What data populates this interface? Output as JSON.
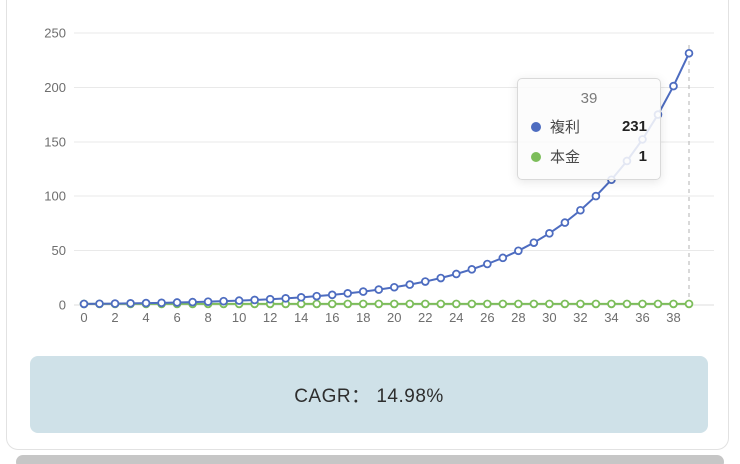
{
  "chart_data": {
    "type": "line",
    "x": [
      0,
      1,
      2,
      3,
      4,
      5,
      6,
      7,
      8,
      9,
      10,
      11,
      12,
      13,
      14,
      15,
      16,
      17,
      18,
      19,
      20,
      21,
      22,
      23,
      24,
      25,
      26,
      27,
      28,
      29,
      30,
      31,
      32,
      33,
      34,
      35,
      36,
      37,
      38,
      39
    ],
    "series": [
      {
        "name": "複利",
        "color": "#4d6cc0",
        "values": [
          1,
          1.15,
          1.32,
          1.52,
          1.75,
          2.01,
          2.31,
          2.66,
          3.05,
          3.51,
          4.04,
          4.64,
          5.34,
          6.14,
          7.06,
          8.12,
          9.33,
          10.73,
          12.34,
          14.18,
          16.31,
          18.75,
          21.56,
          24.79,
          28.51,
          32.78,
          37.69,
          43.33,
          49.82,
          57.29,
          65.87,
          75.73,
          87.08,
          100.12,
          115.12,
          132.37,
          152.21,
          175.01,
          201.22,
          231.37
        ]
      },
      {
        "name": "本金",
        "color": "#7cbd5a",
        "values": [
          1,
          1,
          1,
          1,
          1,
          1,
          1,
          1,
          1,
          1,
          1,
          1,
          1,
          1,
          1,
          1,
          1,
          1,
          1,
          1,
          1,
          1,
          1,
          1,
          1,
          1,
          1,
          1,
          1,
          1,
          1,
          1,
          1,
          1,
          1,
          1,
          1,
          1,
          1,
          1
        ]
      }
    ],
    "xticks": [
      0,
      2,
      4,
      6,
      8,
      10,
      12,
      14,
      16,
      18,
      20,
      22,
      24,
      26,
      28,
      30,
      32,
      34,
      36,
      38
    ],
    "yticks": [
      0,
      50,
      100,
      150,
      200,
      250
    ],
    "ylim": [
      0,
      250
    ],
    "xlabel": "",
    "ylabel": "",
    "grid": true,
    "legend": "none",
    "pointer_x": 39,
    "colors": {
      "grid": "#e9e9e9",
      "axis": "#dcdcdc",
      "pointer": "#b3b3b3",
      "tick_text": "#6e6e6e"
    }
  },
  "tooltip": {
    "title": "39",
    "rows": [
      {
        "label": "複利",
        "value": "231"
      },
      {
        "label": "本金",
        "value": "1"
      }
    ]
  },
  "cagr": {
    "text": "CAGR： 14.98%"
  }
}
